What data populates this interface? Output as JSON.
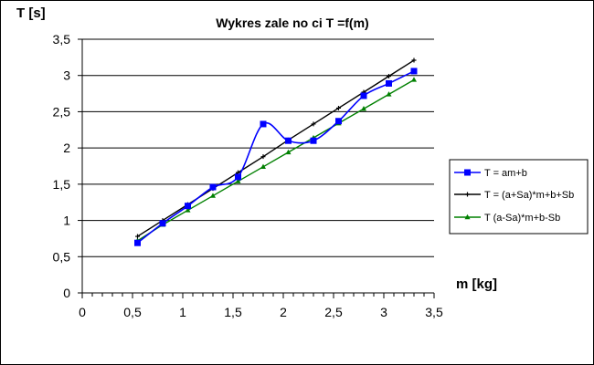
{
  "chart_data": {
    "type": "line",
    "title": "Wykres zale  no  ci T =f(m)",
    "xlabel": "m [kg]",
    "ylabel": "T [s]",
    "xlim": [
      0,
      3.5
    ],
    "ylim": [
      0,
      3.5
    ],
    "x_ticks": [
      "0",
      "0,5",
      "1",
      "1,5",
      "2",
      "2,5",
      "3",
      "3,5"
    ],
    "y_ticks": [
      "0",
      "0,5",
      "1",
      "1,5",
      "2",
      "2,5",
      "3",
      "3,5"
    ],
    "grid": "horizontal major lines",
    "legend_position": "right",
    "series": [
      {
        "name": "T = am+b",
        "color": "#0000ff",
        "marker": "square",
        "smooth": true,
        "x": [
          0.55,
          0.8,
          1.05,
          1.3,
          1.55,
          1.8,
          2.05,
          2.3,
          2.55,
          2.8,
          3.05,
          3.3
        ],
        "y": [
          0.69,
          0.96,
          1.2,
          1.46,
          1.6,
          2.33,
          2.1,
          2.1,
          2.37,
          2.72,
          2.89,
          3.06
        ]
      },
      {
        "name": "T = (a+Sa)*m+b+Sb",
        "color": "#000000",
        "marker": "plus",
        "smooth": false,
        "x": [
          0.55,
          0.8,
          1.05,
          1.3,
          1.55,
          1.8,
          2.05,
          2.3,
          2.55,
          2.8,
          3.05,
          3.3
        ],
        "y": [
          0.78,
          1.0,
          1.22,
          1.44,
          1.66,
          1.88,
          2.11,
          2.33,
          2.55,
          2.77,
          2.99,
          3.21
        ]
      },
      {
        "name": "T (a-Sa)*m+b-Sb",
        "color": "#008000",
        "marker": "triangle",
        "smooth": false,
        "x": [
          0.55,
          0.8,
          1.05,
          1.3,
          1.55,
          1.8,
          2.05,
          2.3,
          2.55,
          2.8,
          3.05,
          3.3
        ],
        "y": [
          0.72,
          0.94,
          1.14,
          1.34,
          1.54,
          1.74,
          1.94,
          2.14,
          2.34,
          2.54,
          2.74,
          2.94
        ]
      }
    ]
  }
}
